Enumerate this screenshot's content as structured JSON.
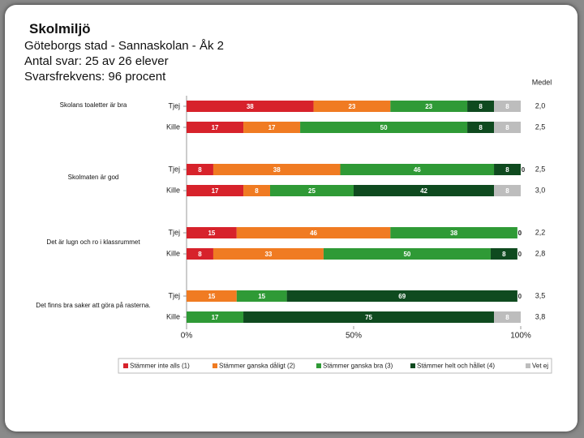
{
  "chart_data": {
    "type": "stacked-bar-horizontal",
    "title": "Skolmiljö",
    "subtitle_lines": [
      "Göteborgs stad - Sannaskolan - Åk 2",
      "Antal svar: 25 av 26 elever",
      "Svarsfrekvens: 96 procent"
    ],
    "questions": [
      "Skolans toaletter är bra",
      "Skolmaten är god",
      "Det är lugn och ro i klassrummet",
      "Det finns bra saker att göra på rasterna."
    ],
    "categories": [
      "Tjej",
      "Kille",
      "Tjej",
      "Kille",
      "Tjej",
      "Kille",
      "Tjej",
      "Kille"
    ],
    "series": [
      {
        "name": "Stämmer inte alls (1)",
        "color": "#d7222b",
        "values": [
          38,
          17,
          8,
          17,
          15,
          8,
          0,
          0
        ]
      },
      {
        "name": "Stämmer ganska dåligt (2)",
        "color": "#f07b22",
        "values": [
          23,
          17,
          38,
          8,
          46,
          33,
          15,
          0
        ]
      },
      {
        "name": "Stämmer ganska bra (3)",
        "color": "#2f9a36",
        "values": [
          23,
          50,
          46,
          25,
          38,
          50,
          15,
          17
        ]
      },
      {
        "name": "Stämmer helt och hållet (4)",
        "color": "#0f4a1f",
        "values": [
          8,
          8,
          8,
          42,
          0,
          8,
          69,
          75
        ]
      },
      {
        "name": "Vet ej",
        "color": "#bdbdbd",
        "values": [
          8,
          8,
          0,
          8,
          0,
          0,
          0,
          8
        ]
      }
    ],
    "medel": {
      "name": "Medel",
      "values": [
        2.0,
        2.5,
        2.5,
        3.0,
        2.2,
        2.8,
        3.5,
        3.8
      ],
      "value_labels": [
        "2,0",
        "2,5",
        "2,5",
        "3,0",
        "2,2",
        "2,8",
        "3,5",
        "3,8"
      ]
    },
    "xlim": [
      0,
      100
    ],
    "xticks": [
      {
        "value": 0,
        "label": "0%"
      },
      {
        "value": 50,
        "label": "50%"
      },
      {
        "value": 100,
        "label": "100%"
      }
    ]
  }
}
